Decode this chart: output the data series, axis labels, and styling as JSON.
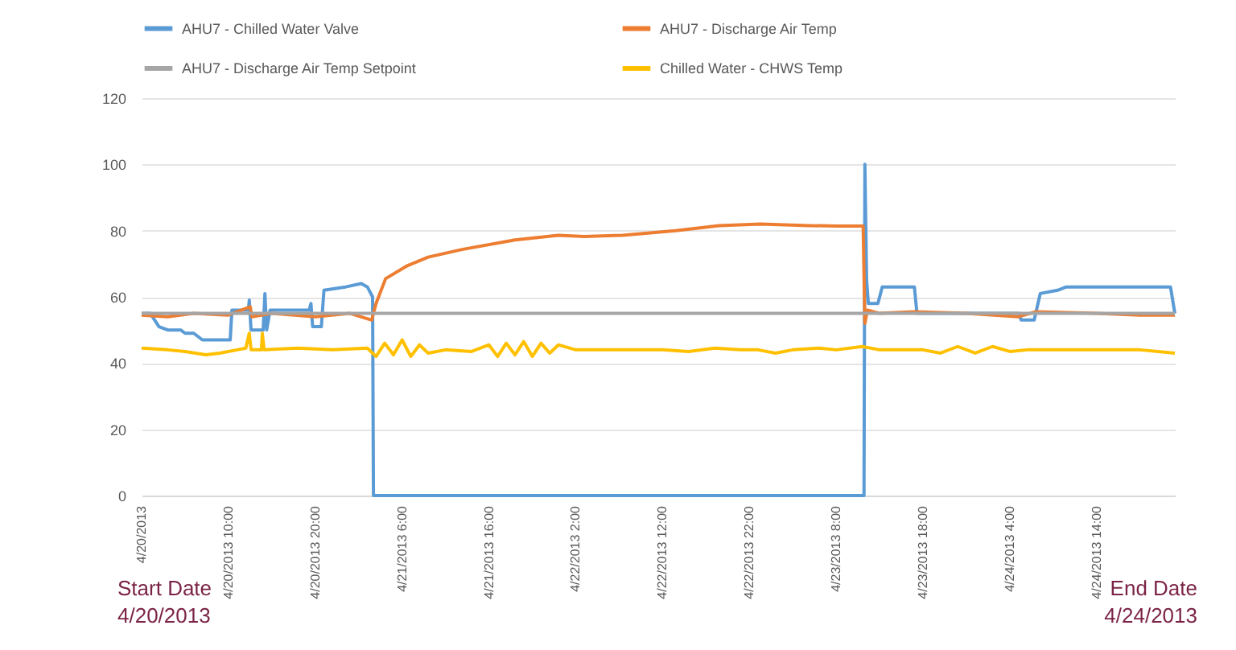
{
  "chart_data": {
    "type": "line",
    "legend": "top",
    "grid": "y",
    "marker": "none",
    "line_style": "solid",
    "ylim": [
      0,
      120
    ],
    "yticks": [
      0,
      20,
      40,
      60,
      80,
      100,
      120
    ],
    "xlim": [
      "2013-04-20T00:00",
      "2013-04-24T23:00"
    ],
    "xticks": [
      {
        "value": "2013-04-20T00:00",
        "label": "4/20/2013"
      },
      {
        "value": "2013-04-20T10:00",
        "label": "4/20/2013 10:00"
      },
      {
        "value": "2013-04-20T20:00",
        "label": "4/20/2013 20:00"
      },
      {
        "value": "2013-04-21T06:00",
        "label": "4/21/2013 6:00"
      },
      {
        "value": "2013-04-21T16:00",
        "label": "4/21/2013 16:00"
      },
      {
        "value": "2013-04-22T02:00",
        "label": "4/22/2013 2:00"
      },
      {
        "value": "2013-04-22T12:00",
        "label": "4/22/2013 12:00"
      },
      {
        "value": "2013-04-22T22:00",
        "label": "4/22/2013 22:00"
      },
      {
        "value": "2013-04-23T08:00",
        "label": "4/23/2013 8:00"
      },
      {
        "value": "2013-04-23T18:00",
        "label": "4/23/2013 18:00"
      },
      {
        "value": "2013-04-24T04:00",
        "label": "4/24/2013 4:00"
      },
      {
        "value": "2013-04-24T14:00",
        "label": "4/24/2013 14:00"
      }
    ],
    "annotations": [
      "Start Date\n4/20/2013",
      "End Date\n4/24/2013"
    ],
    "series": [
      {
        "name": "AHU7 - Chilled Water Valve",
        "color": "#5b9bd5",
        "x": [
          "2013-04-20T00:00",
          "2013-04-20T01:00",
          "2013-04-20T01:30",
          "2013-04-20T02:00",
          "2013-04-20T03:00",
          "2013-04-20T04:30",
          "2013-04-20T05:00",
          "2013-04-20T06:00",
          "2013-04-20T07:00",
          "2013-04-20T10:12",
          "2013-04-20T10:24",
          "2013-04-20T12:18",
          "2013-04-20T12:24",
          "2013-04-20T12:36",
          "2013-04-20T14:00",
          "2013-04-20T14:12",
          "2013-04-20T14:24",
          "2013-04-20T14:48",
          "2013-04-20T19:18",
          "2013-04-20T19:30",
          "2013-04-20T19:42",
          "2013-04-20T20:42",
          "2013-04-20T21:00",
          "2013-04-20T23:30",
          "2013-04-21T01:18",
          "2013-04-21T02:00",
          "2013-04-21T02:36",
          "2013-04-21T02:42",
          "2013-04-23T11:12",
          "2013-04-23T11:18",
          "2013-04-23T11:30",
          "2013-04-23T11:42",
          "2013-04-23T12:48",
          "2013-04-23T13:18",
          "2013-04-23T17:00",
          "2013-04-23T17:18",
          "2013-04-24T05:00",
          "2013-04-24T05:18",
          "2013-04-24T06:48",
          "2013-04-24T07:30",
          "2013-04-24T09:30",
          "2013-04-24T10:30",
          "2013-04-24T22:30",
          "2013-04-24T23:00"
        ],
        "values": [
          55,
          55,
          53,
          51,
          50,
          50,
          49,
          49,
          47,
          47,
          56,
          56,
          59,
          50,
          50,
          61,
          50,
          56,
          56,
          58,
          51,
          51,
          62,
          63,
          64,
          63,
          60,
          0,
          0,
          100,
          65,
          58,
          58,
          63,
          63,
          55,
          55,
          53,
          53,
          61,
          62,
          63,
          63,
          55
        ]
      },
      {
        "name": "AHU7 - Discharge Air Temp",
        "color": "#ed7d31",
        "x": [
          "2013-04-20T00:00",
          "2013-04-20T03:00",
          "2013-04-20T06:00",
          "2013-04-20T10:00",
          "2013-04-20T12:30",
          "2013-04-20T12:42",
          "2013-04-20T15:00",
          "2013-04-20T20:00",
          "2013-04-21T00:00",
          "2013-04-21T02:30",
          "2013-04-21T03:00",
          "2013-04-21T04:06",
          "2013-04-21T06:36",
          "2013-04-21T09:00",
          "2013-04-21T12:54",
          "2013-04-21T19:00",
          "2013-04-22T00:00",
          "2013-04-22T03:00",
          "2013-04-22T07:24",
          "2013-04-22T13:30",
          "2013-04-22T18:30",
          "2013-04-22T23:18",
          "2013-04-23T04:54",
          "2013-04-23T08:00",
          "2013-04-23T11:06",
          "2013-04-23T11:18",
          "2013-04-23T11:36",
          "2013-04-23T13:00",
          "2013-04-23T17:00",
          "2013-04-23T23:00",
          "2013-04-24T05:00",
          "2013-04-24T07:00",
          "2013-04-24T14:00",
          "2013-04-24T19:00",
          "2013-04-24T23:00"
        ],
        "values": [
          54.5,
          54,
          55,
          54.5,
          57,
          54,
          55,
          54,
          55,
          53,
          58,
          65.5,
          69.4,
          72,
          74.3,
          77.2,
          78.6,
          78.2,
          78.6,
          80,
          81.5,
          82,
          81.5,
          81.4,
          81.4,
          52,
          56,
          55,
          55.5,
          55,
          54,
          55.5,
          55,
          54.5,
          54.5
        ]
      },
      {
        "name": "AHU7 - Discharge Air Temp Setpoint",
        "color": "#a5a5a5",
        "x": [
          "2013-04-20T00:00",
          "2013-04-24T23:00"
        ],
        "values": [
          55,
          55
        ]
      },
      {
        "name": "Chilled Water - CHWS Temp",
        "color": "#ffc000",
        "x": [
          "2013-04-20T00:00",
          "2013-04-20T03:00",
          "2013-04-20T05:00",
          "2013-04-20T07:24",
          "2013-04-20T09:00",
          "2013-04-20T11:00",
          "2013-04-20T12:00",
          "2013-04-20T12:24",
          "2013-04-20T12:36",
          "2013-04-20T13:48",
          "2013-04-20T13:54",
          "2013-04-20T14:06",
          "2013-04-20T18:00",
          "2013-04-20T22:00",
          "2013-04-21T02:00",
          "2013-04-21T03:00",
          "2013-04-21T04:00",
          "2013-04-21T05:00",
          "2013-04-21T06:00",
          "2013-04-21T07:00",
          "2013-04-21T08:00",
          "2013-04-21T09:00",
          "2013-04-21T11:00",
          "2013-04-21T14:00",
          "2013-04-21T16:00",
          "2013-04-21T17:00",
          "2013-04-21T18:00",
          "2013-04-21T19:00",
          "2013-04-21T20:00",
          "2013-04-21T21:00",
          "2013-04-21T22:00",
          "2013-04-21T23:00",
          "2013-04-22T00:00",
          "2013-04-22T02:00",
          "2013-04-22T07:00",
          "2013-04-22T12:00",
          "2013-04-22T15:00",
          "2013-04-22T18:00",
          "2013-04-22T21:00",
          "2013-04-22T23:00",
          "2013-04-23T01:00",
          "2013-04-23T03:00",
          "2013-04-23T06:00",
          "2013-04-23T08:00",
          "2013-04-23T11:00",
          "2013-04-23T13:00",
          "2013-04-23T18:00",
          "2013-04-23T20:00",
          "2013-04-23T22:00",
          "2013-04-24T00:00",
          "2013-04-24T02:00",
          "2013-04-24T04:00",
          "2013-04-24T06:00",
          "2013-04-24T10:00",
          "2013-04-24T19:00",
          "2013-04-24T23:00"
        ],
        "values": [
          44.5,
          44,
          43.5,
          42.5,
          43,
          44,
          44.5,
          49,
          44,
          44,
          49,
          44,
          44.5,
          44,
          44.5,
          42,
          46,
          42.5,
          47,
          42,
          45.5,
          43,
          44,
          43.5,
          45.5,
          42,
          46,
          42.5,
          46.5,
          42,
          46,
          43,
          45.5,
          44,
          44,
          44,
          43.5,
          44.5,
          44,
          44,
          43,
          44,
          44.5,
          44,
          45,
          44,
          44,
          43,
          45,
          43,
          45,
          43.5,
          44,
          44,
          44,
          43
        ]
      }
    ]
  }
}
